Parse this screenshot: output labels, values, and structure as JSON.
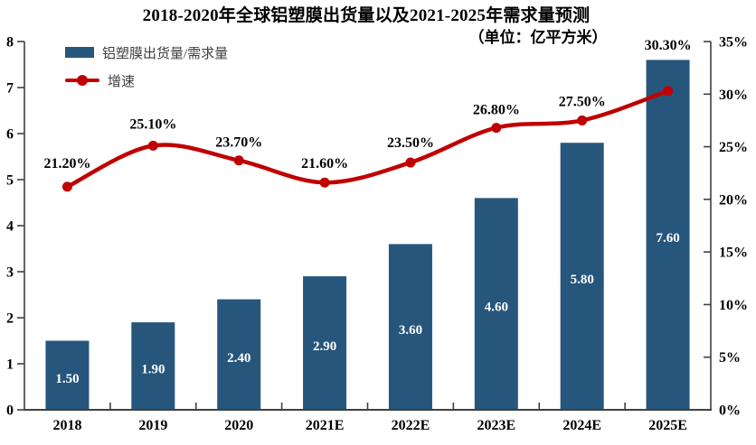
{
  "chart_data": {
    "type": "combo-bar-line",
    "title": "2018-2020年全球铝塑膜出货量以及2021-2025年需求量预测",
    "subtitle": "（单位：亿平方米）",
    "categories": [
      "2018",
      "2019",
      "2020",
      "2021E",
      "2022E",
      "2023E",
      "2024E",
      "2025E"
    ],
    "series": [
      {
        "name": "铝塑膜出货量/需求量",
        "type": "bar",
        "axis": "left",
        "color": "#26567C",
        "values": [
          1.5,
          1.9,
          2.4,
          2.9,
          3.6,
          4.6,
          5.8,
          7.6
        ],
        "data_labels": [
          "1.50",
          "1.90",
          "2.40",
          "2.90",
          "3.60",
          "4.60",
          "5.80",
          "7.60"
        ]
      },
      {
        "name": "增速",
        "type": "line",
        "axis": "right",
        "color": "#C00000",
        "values": [
          21.2,
          25.1,
          23.7,
          21.6,
          23.5,
          26.8,
          27.5,
          30.3
        ],
        "data_labels": [
          "21.20%",
          "25.10%",
          "23.70%",
          "21.60%",
          "23.50%",
          "26.80%",
          "27.50%",
          "30.30%"
        ]
      }
    ],
    "left_axis": {
      "min": 0,
      "max": 8,
      "step": 1,
      "tick_labels": [
        "0",
        "1",
        "2",
        "3",
        "4",
        "5",
        "6",
        "7",
        "8"
      ]
    },
    "right_axis": {
      "min": 0,
      "max": 35,
      "step": 5,
      "tick_labels": [
        "0%",
        "5%",
        "10%",
        "15%",
        "20%",
        "25%",
        "30%",
        "35%"
      ]
    },
    "legend_position": "top-left",
    "grid": false
  },
  "colors": {
    "bar": "#26567C",
    "line": "#C00000",
    "axis": "#404040",
    "text": "#000000",
    "bar_label": "#FFFFFF",
    "legend_text": "#404040",
    "background": "#FFFFFF"
  }
}
